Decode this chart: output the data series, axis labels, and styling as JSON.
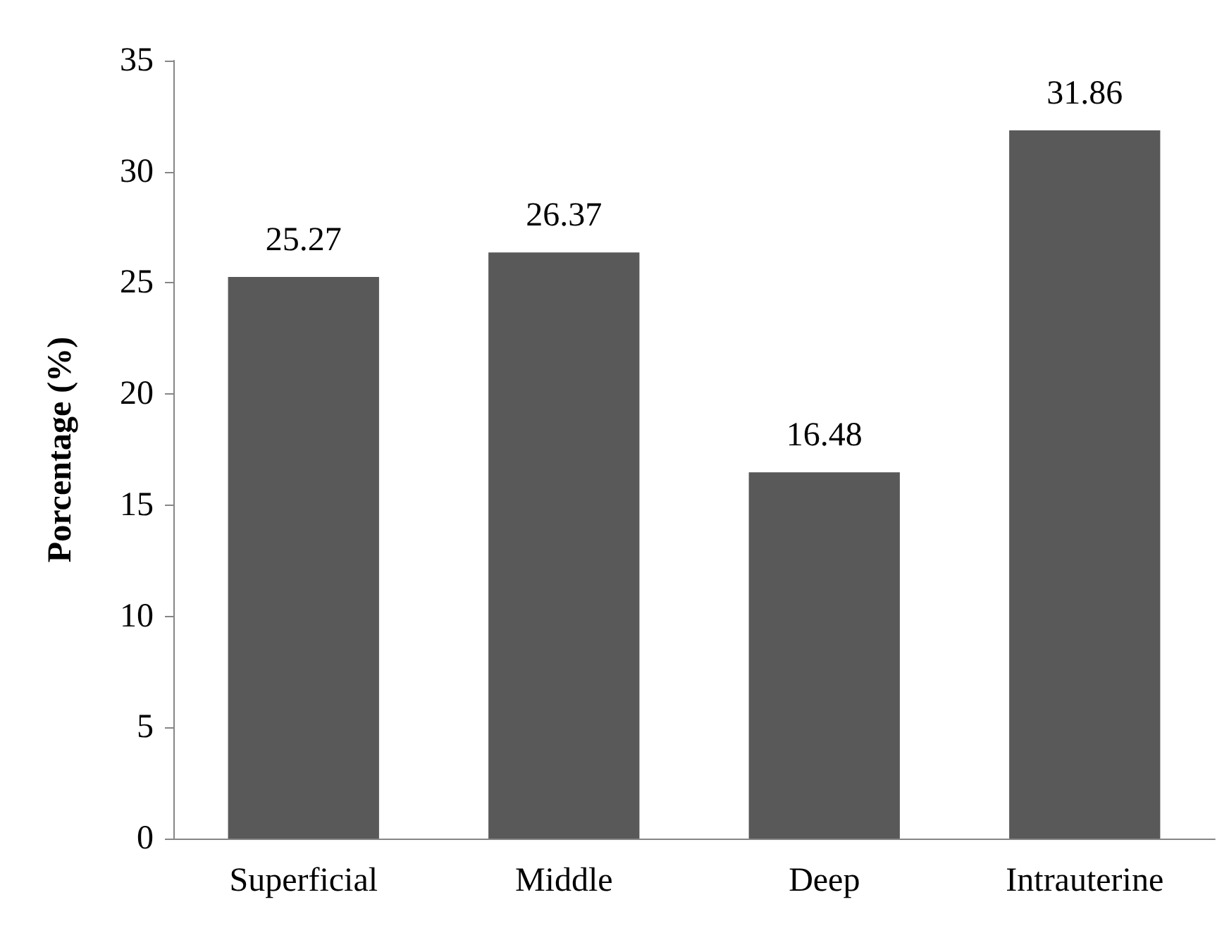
{
  "chart_data": {
    "type": "bar",
    "ylabel": "Porcentage (%)",
    "categories": [
      "Superficial",
      "Middle",
      "Deep",
      "Intrauterine"
    ],
    "values": [
      25.27,
      26.37,
      16.48,
      31.86
    ],
    "color": "#595959",
    "ylim": [
      0,
      35
    ],
    "yticks": [
      0,
      5,
      10,
      15,
      20,
      25,
      30,
      35
    ],
    "data_labels": true
  }
}
